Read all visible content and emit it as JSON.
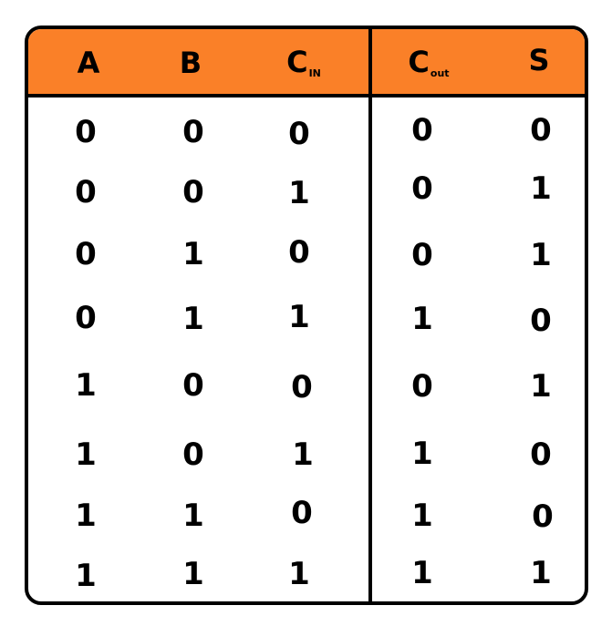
{
  "header": {
    "a": "A",
    "b": "B",
    "cin_main": "C",
    "cin_sub": "IN",
    "cout_main": "C",
    "cout_sub": "out",
    "s": "S"
  },
  "rows": [
    [
      "0",
      "0",
      "0",
      "0",
      "0"
    ],
    [
      "0",
      "0",
      "1",
      "0",
      "1"
    ],
    [
      "0",
      "1",
      "0",
      "0",
      "1"
    ],
    [
      "0",
      "1",
      "1",
      "1",
      "0"
    ],
    [
      "1",
      "0",
      "0",
      "0",
      "1"
    ],
    [
      "1",
      "0",
      "1",
      "1",
      "0"
    ],
    [
      "1",
      "1",
      "0",
      "1",
      "0"
    ],
    [
      "1",
      "1",
      "1",
      "1",
      "1"
    ]
  ],
  "colors": {
    "header_bg": "#fa8028",
    "border": "#000000",
    "background": "#ffffff"
  }
}
